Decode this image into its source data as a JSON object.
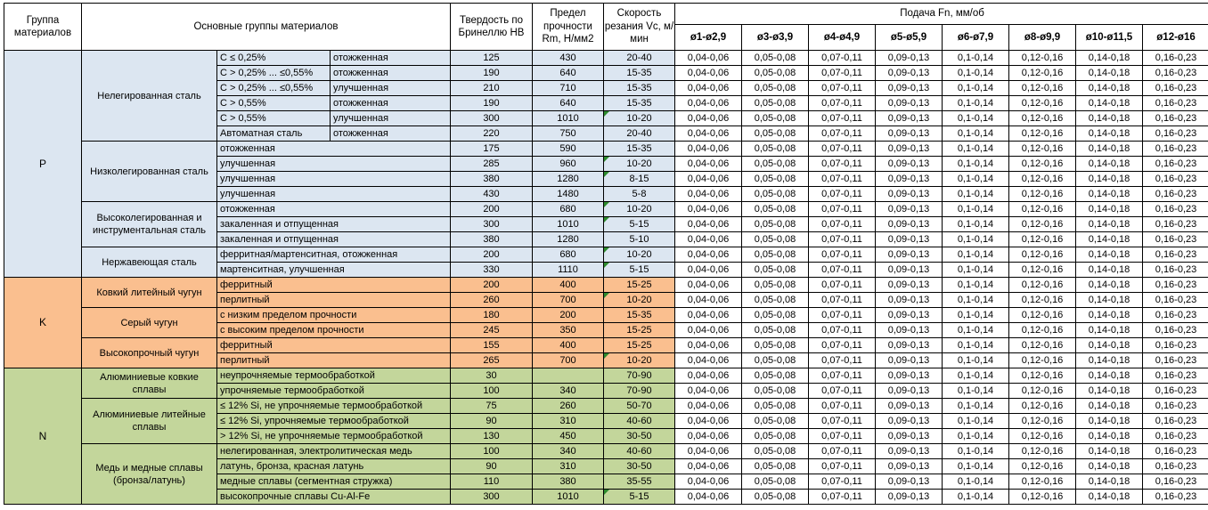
{
  "header": {
    "col_group": "Группа материалов",
    "col_main": "Основные группы материалов",
    "col_hb": "Твердость по Бринеллю HB",
    "col_rm": "Предел прочности Rm, Н/мм2",
    "col_vc": "Скорость резания Vc, м/мин",
    "feed_title": "Подача Fn, мм/об",
    "feed_cols": [
      "ø1-ø2,9",
      "ø3-ø3,9",
      "ø4-ø4,9",
      "ø5-ø5,9",
      "ø6-ø7,9",
      "ø8-ø9,9",
      "ø10-ø11,5",
      "ø12-ø16"
    ]
  },
  "feed_values": [
    "0,04-0,06",
    "0,05-0,08",
    "0,07-0,11",
    "0,09-0,13",
    "0,1-0,14",
    "0,12-0,16",
    "0,14-0,18",
    "0,16-0,23"
  ],
  "colors": {
    "group_p": "#dce6f1",
    "group_k": "#fabf8f",
    "group_n": "#c3d69b",
    "flag_green": "#2e8b2e",
    "border": "#000000",
    "header_bg": "#ffffff"
  },
  "groups": [
    {
      "letter": "P",
      "bg": "#dce6f1",
      "subgroups": [
        {
          "name": "Нелегированная сталь",
          "rows": [
            {
              "c1": "C ≤ 0,25%",
              "c2": "отожженная",
              "hb": "125",
              "rm": "430",
              "vc": "20-40",
              "flag": false
            },
            {
              "c1": "C > 0,25% ... ≤0,55%",
              "c2": "отожженная",
              "hb": "190",
              "rm": "640",
              "vc": "15-35",
              "flag": false
            },
            {
              "c1": "C > 0,25% ... ≤0,55%",
              "c2": "улучшенная",
              "hb": "210",
              "rm": "710",
              "vc": "15-35",
              "flag": false
            },
            {
              "c1": "C > 0,55%",
              "c2": "отожженная",
              "hb": "190",
              "rm": "640",
              "vc": "15-35",
              "flag": false
            },
            {
              "c1": "C > 0,55%",
              "c2": "улучшенная",
              "hb": "300",
              "rm": "1010",
              "vc": "10-20",
              "flag": true
            },
            {
              "c1": "Автоматная сталь",
              "c2": "отожженная",
              "hb": "220",
              "rm": "750",
              "vc": "20-40",
              "flag": false
            }
          ]
        },
        {
          "name": "Низколегированная сталь",
          "rows": [
            {
              "desc": "отожженная",
              "hb": "175",
              "rm": "590",
              "vc": "15-35",
              "flag": false
            },
            {
              "desc": "улучшенная",
              "hb": "285",
              "rm": "960",
              "vc": "10-20",
              "flag": true
            },
            {
              "desc": "улучшенная",
              "hb": "380",
              "rm": "1280",
              "vc": "8-15",
              "flag": true
            },
            {
              "desc": "улучшенная",
              "hb": "430",
              "rm": "1480",
              "vc": "5-8",
              "flag": false
            }
          ]
        },
        {
          "name": "Высоколегированная и инструментальная сталь",
          "rows": [
            {
              "desc": "отожженная",
              "hb": "200",
              "rm": "680",
              "vc": "10-20",
              "flag": true
            },
            {
              "desc": "закаленная и отпущенная",
              "hb": "300",
              "rm": "1010",
              "vc": "5-15",
              "flag": true
            },
            {
              "desc": "закаленная и отпущенная",
              "hb": "380",
              "rm": "1280",
              "vc": "5-10",
              "flag": false
            }
          ]
        },
        {
          "name": "Нержавеющая сталь",
          "rows": [
            {
              "desc": "ферритная/мартенситная, отожженная",
              "hb": "200",
              "rm": "680",
              "vc": "10-20",
              "flag": true
            },
            {
              "desc": "мартенситная, улучшенная",
              "hb": "330",
              "rm": "1110",
              "vc": "5-15",
              "flag": true
            }
          ]
        }
      ]
    },
    {
      "letter": "K",
      "bg": "#fabf8f",
      "subgroups": [
        {
          "name": "Ковкий литейный чугун",
          "rows": [
            {
              "desc": "ферритный",
              "hb": "200",
              "rm": "400",
              "vc": "15-25",
              "flag": false
            },
            {
              "desc": "перлитный",
              "hb": "260",
              "rm": "700",
              "vc": "10-20",
              "flag": true
            }
          ]
        },
        {
          "name": "Серый чугун",
          "rows": [
            {
              "desc": "с низким пределом прочности",
              "hb": "180",
              "rm": "200",
              "vc": "15-35",
              "flag": false
            },
            {
              "desc": "с высоким пределом прочности",
              "hb": "245",
              "rm": "350",
              "vc": "15-25",
              "flag": false
            }
          ]
        },
        {
          "name": "Высокопрочный чугун",
          "rows": [
            {
              "desc": "ферритный",
              "hb": "155",
              "rm": "400",
              "vc": "15-25",
              "flag": false
            },
            {
              "desc": "перлитный",
              "hb": "265",
              "rm": "700",
              "vc": "10-20",
              "flag": true
            }
          ]
        }
      ]
    },
    {
      "letter": "N",
      "bg": "#c3d69b",
      "subgroups": [
        {
          "name": "Алюминиевые ковкие сплавы",
          "rows": [
            {
              "desc": "неупрочняемые термообработкой",
              "hb": "30",
              "rm": "",
              "vc": "70-90",
              "flag": false
            },
            {
              "desc": "упрочняемые термообработкой",
              "hb": "100",
              "rm": "340",
              "vc": "70-90",
              "flag": false
            }
          ]
        },
        {
          "name": "Алюминиевые литейные сплавы",
          "rows": [
            {
              "desc": "≤ 12% Si, не упрочняемые термообработкой",
              "hb": "75",
              "rm": "260",
              "vc": "50-70",
              "flag": false
            },
            {
              "desc": "≤ 12% Si, упрочняемые термообработкой",
              "hb": "90",
              "rm": "310",
              "vc": "40-60",
              "flag": false
            },
            {
              "desc": "> 12% Si, не упрочняемые термообработкой",
              "hb": "130",
              "rm": "450",
              "vc": "30-50",
              "flag": false
            }
          ]
        },
        {
          "name": "Медь и медные сплавы (бронза/латунь)",
          "rows": [
            {
              "desc": "нелегированная, электролитическая медь",
              "hb": "100",
              "rm": "340",
              "vc": "40-60",
              "flag": false
            },
            {
              "desc": "латунь, бронза, красная латунь",
              "hb": "90",
              "rm": "310",
              "vc": "30-50",
              "flag": false
            },
            {
              "desc": "медные сплавы (сегментная стружка)",
              "hb": "110",
              "rm": "380",
              "vc": "35-55",
              "flag": false
            },
            {
              "desc": "высокопрочные сплавы Cu-Al-Fe",
              "hb": "300",
              "rm": "1010",
              "vc": "5-15",
              "flag": true
            }
          ]
        }
      ]
    }
  ]
}
